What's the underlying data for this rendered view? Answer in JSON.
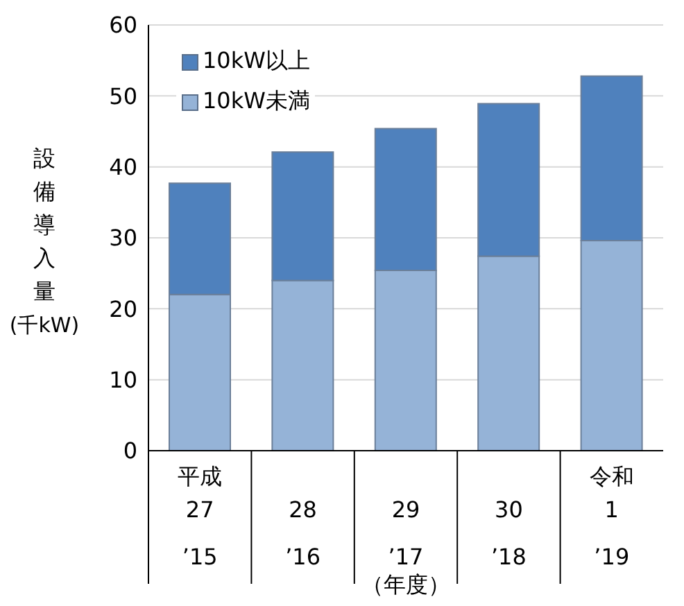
{
  "chart_data": {
    "type": "bar",
    "stacked": true,
    "ylabel": "設備導入量(千kW)",
    "xlabel": "（年度）",
    "categories": [
      "平成\n27\n’15",
      "28\n’16",
      "29\n’17",
      "30\n’18",
      "令和\n1\n’19"
    ],
    "series": [
      {
        "name": "10kW未満",
        "color": "#95b3d7",
        "values": [
          22.0,
          24.0,
          25.4,
          27.4,
          29.6
        ]
      },
      {
        "name": "10kW以上",
        "color": "#4f81bd",
        "values": [
          15.7,
          18.1,
          20.0,
          21.5,
          23.2
        ]
      }
    ],
    "ylim": [
      0,
      60
    ],
    "yticks": [
      0,
      10,
      20,
      30,
      40,
      50,
      60
    ],
    "grid": "y",
    "legend": "top left"
  }
}
